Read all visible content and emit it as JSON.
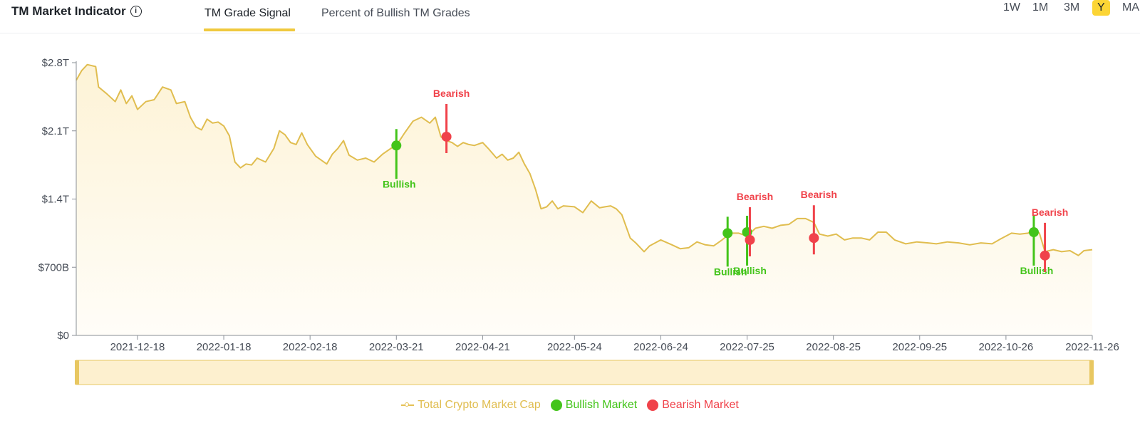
{
  "header": {
    "title": "TM Market Indicator",
    "tabs": [
      {
        "label": "TM Grade Signal",
        "active": true
      },
      {
        "label": "Percent of Bullish TM Grades",
        "active": false
      }
    ],
    "ranges": [
      {
        "label": "1W",
        "selected": false
      },
      {
        "label": "1M",
        "selected": false
      },
      {
        "label": "3M",
        "selected": false
      },
      {
        "label": "Y",
        "selected": true
      },
      {
        "label": "MA",
        "selected": false
      }
    ]
  },
  "colors": {
    "line": "#e0bd4f",
    "bullish": "#43c41a",
    "bearish": "#f0424a",
    "accent": "#fcd535"
  },
  "legend": {
    "market_cap": "Total Crypto Market Cap",
    "bullish": "Bullish Market",
    "bearish": "Bearish Market"
  },
  "chart_data": {
    "type": "area",
    "x_range": [
      "2021-11-26",
      "2022-11-26"
    ],
    "ylim": [
      0,
      2.8
    ],
    "y_unit": "trillion USD",
    "y_ticks": [
      {
        "value": 0,
        "label": "$0"
      },
      {
        "value": 0.7,
        "label": "$700B"
      },
      {
        "value": 1.4,
        "label": "$1.4T"
      },
      {
        "value": 2.1,
        "label": "$2.1T"
      },
      {
        "value": 2.8,
        "label": "$2.8T"
      }
    ],
    "x_ticks": [
      "2021-12-18",
      "2022-01-18",
      "2022-02-18",
      "2022-03-21",
      "2022-04-21",
      "2022-05-24",
      "2022-06-24",
      "2022-07-25",
      "2022-08-25",
      "2022-09-25",
      "2022-10-26",
      "2022-11-26"
    ],
    "series": [
      {
        "name": "Total Crypto Market Cap",
        "points": [
          [
            "2021-11-26",
            2.62
          ],
          [
            "2021-11-28",
            2.72
          ],
          [
            "2021-11-30",
            2.78
          ],
          [
            "2021-12-03",
            2.76
          ],
          [
            "2021-12-04",
            2.55
          ],
          [
            "2021-12-07",
            2.48
          ],
          [
            "2021-12-10",
            2.4
          ],
          [
            "2021-12-12",
            2.52
          ],
          [
            "2021-12-14",
            2.38
          ],
          [
            "2021-12-16",
            2.46
          ],
          [
            "2021-12-18",
            2.32
          ],
          [
            "2021-12-21",
            2.4
          ],
          [
            "2021-12-24",
            2.42
          ],
          [
            "2021-12-27",
            2.55
          ],
          [
            "2021-12-30",
            2.52
          ],
          [
            "2022-01-01",
            2.38
          ],
          [
            "2022-01-04",
            2.4
          ],
          [
            "2022-01-06",
            2.24
          ],
          [
            "2022-01-08",
            2.14
          ],
          [
            "2022-01-10",
            2.11
          ],
          [
            "2022-01-12",
            2.22
          ],
          [
            "2022-01-14",
            2.18
          ],
          [
            "2022-01-16",
            2.19
          ],
          [
            "2022-01-18",
            2.15
          ],
          [
            "2022-01-20",
            2.05
          ],
          [
            "2022-01-22",
            1.78
          ],
          [
            "2022-01-24",
            1.72
          ],
          [
            "2022-01-26",
            1.76
          ],
          [
            "2022-01-28",
            1.75
          ],
          [
            "2022-01-30",
            1.82
          ],
          [
            "2022-02-02",
            1.78
          ],
          [
            "2022-02-05",
            1.92
          ],
          [
            "2022-02-07",
            2.1
          ],
          [
            "2022-02-09",
            2.06
          ],
          [
            "2022-02-11",
            1.98
          ],
          [
            "2022-02-13",
            1.96
          ],
          [
            "2022-02-15",
            2.08
          ],
          [
            "2022-02-17",
            1.96
          ],
          [
            "2022-02-20",
            1.84
          ],
          [
            "2022-02-22",
            1.8
          ],
          [
            "2022-02-24",
            1.76
          ],
          [
            "2022-02-26",
            1.86
          ],
          [
            "2022-02-28",
            1.92
          ],
          [
            "2022-03-02",
            2.0
          ],
          [
            "2022-03-04",
            1.85
          ],
          [
            "2022-03-07",
            1.8
          ],
          [
            "2022-03-10",
            1.82
          ],
          [
            "2022-03-13",
            1.78
          ],
          [
            "2022-03-16",
            1.86
          ],
          [
            "2022-03-19",
            1.92
          ],
          [
            "2022-03-21",
            1.95
          ],
          [
            "2022-03-24",
            2.08
          ],
          [
            "2022-03-27",
            2.2
          ],
          [
            "2022-03-30",
            2.24
          ],
          [
            "2022-04-02",
            2.18
          ],
          [
            "2022-04-04",
            2.24
          ],
          [
            "2022-04-06",
            2.04
          ],
          [
            "2022-04-08",
            2.0
          ],
          [
            "2022-04-10",
            1.98
          ],
          [
            "2022-04-12",
            1.94
          ],
          [
            "2022-04-14",
            1.98
          ],
          [
            "2022-04-16",
            1.96
          ],
          [
            "2022-04-18",
            1.95
          ],
          [
            "2022-04-21",
            1.98
          ],
          [
            "2022-04-23",
            1.92
          ],
          [
            "2022-04-26",
            1.82
          ],
          [
            "2022-04-28",
            1.86
          ],
          [
            "2022-04-30",
            1.8
          ],
          [
            "2022-05-02",
            1.82
          ],
          [
            "2022-05-04",
            1.88
          ],
          [
            "2022-05-06",
            1.76
          ],
          [
            "2022-05-08",
            1.66
          ],
          [
            "2022-05-10",
            1.5
          ],
          [
            "2022-05-12",
            1.3
          ],
          [
            "2022-05-14",
            1.32
          ],
          [
            "2022-05-16",
            1.38
          ],
          [
            "2022-05-18",
            1.3
          ],
          [
            "2022-05-20",
            1.33
          ],
          [
            "2022-05-24",
            1.32
          ],
          [
            "2022-05-27",
            1.26
          ],
          [
            "2022-05-30",
            1.38
          ],
          [
            "2022-06-02",
            1.31
          ],
          [
            "2022-06-04",
            1.32
          ],
          [
            "2022-06-06",
            1.33
          ],
          [
            "2022-06-08",
            1.3
          ],
          [
            "2022-06-10",
            1.24
          ],
          [
            "2022-06-13",
            1.0
          ],
          [
            "2022-06-15",
            0.95
          ],
          [
            "2022-06-18",
            0.86
          ],
          [
            "2022-06-20",
            0.92
          ],
          [
            "2022-06-24",
            0.98
          ],
          [
            "2022-06-28",
            0.93
          ],
          [
            "2022-07-01",
            0.89
          ],
          [
            "2022-07-04",
            0.9
          ],
          [
            "2022-07-07",
            0.96
          ],
          [
            "2022-07-10",
            0.93
          ],
          [
            "2022-07-13",
            0.92
          ],
          [
            "2022-07-16",
            0.98
          ],
          [
            "2022-07-19",
            1.05
          ],
          [
            "2022-07-22",
            1.05
          ],
          [
            "2022-07-25",
            1.02
          ],
          [
            "2022-07-28",
            1.1
          ],
          [
            "2022-07-31",
            1.12
          ],
          [
            "2022-08-03",
            1.1
          ],
          [
            "2022-08-06",
            1.13
          ],
          [
            "2022-08-09",
            1.14
          ],
          [
            "2022-08-12",
            1.2
          ],
          [
            "2022-08-15",
            1.2
          ],
          [
            "2022-08-18",
            1.16
          ],
          [
            "2022-08-20",
            1.04
          ],
          [
            "2022-08-23",
            1.02
          ],
          [
            "2022-08-26",
            1.04
          ],
          [
            "2022-08-29",
            0.98
          ],
          [
            "2022-09-01",
            1.0
          ],
          [
            "2022-09-04",
            1.0
          ],
          [
            "2022-09-07",
            0.98
          ],
          [
            "2022-09-10",
            1.06
          ],
          [
            "2022-09-13",
            1.06
          ],
          [
            "2022-09-16",
            0.98
          ],
          [
            "2022-09-20",
            0.94
          ],
          [
            "2022-09-24",
            0.96
          ],
          [
            "2022-09-28",
            0.95
          ],
          [
            "2022-10-01",
            0.94
          ],
          [
            "2022-10-05",
            0.96
          ],
          [
            "2022-10-09",
            0.95
          ],
          [
            "2022-10-13",
            0.93
          ],
          [
            "2022-10-17",
            0.95
          ],
          [
            "2022-10-21",
            0.94
          ],
          [
            "2022-10-24",
            0.99
          ],
          [
            "2022-10-28",
            1.05
          ],
          [
            "2022-10-31",
            1.04
          ],
          [
            "2022-11-03",
            1.05
          ],
          [
            "2022-11-05",
            1.1
          ],
          [
            "2022-11-07",
            1.05
          ],
          [
            "2022-11-09",
            0.86
          ],
          [
            "2022-11-12",
            0.88
          ],
          [
            "2022-11-15",
            0.86
          ],
          [
            "2022-11-18",
            0.87
          ],
          [
            "2022-11-21",
            0.82
          ],
          [
            "2022-11-23",
            0.87
          ],
          [
            "2022-11-26",
            0.88
          ]
        ]
      }
    ],
    "signals": [
      {
        "date": "2022-03-21",
        "value": 1.95,
        "type": "bullish",
        "label": "Bullish"
      },
      {
        "date": "2022-04-08",
        "value": 2.04,
        "type": "bearish",
        "label": "Bearish"
      },
      {
        "date": "2022-07-18",
        "value": 1.05,
        "type": "bullish",
        "label": "Bullish"
      },
      {
        "date": "2022-07-25",
        "value": 1.06,
        "type": "bullish",
        "label": "Bullish"
      },
      {
        "date": "2022-07-26",
        "value": 0.98,
        "type": "bearish",
        "label": "Bearish"
      },
      {
        "date": "2022-08-18",
        "value": 1.0,
        "type": "bearish",
        "label": "Bearish"
      },
      {
        "date": "2022-11-05",
        "value": 1.06,
        "type": "bullish",
        "label": "Bullish"
      },
      {
        "date": "2022-11-09",
        "value": 0.82,
        "type": "bearish",
        "label": "Bearish"
      }
    ],
    "legend_position": "bottom-center",
    "grid": false
  }
}
